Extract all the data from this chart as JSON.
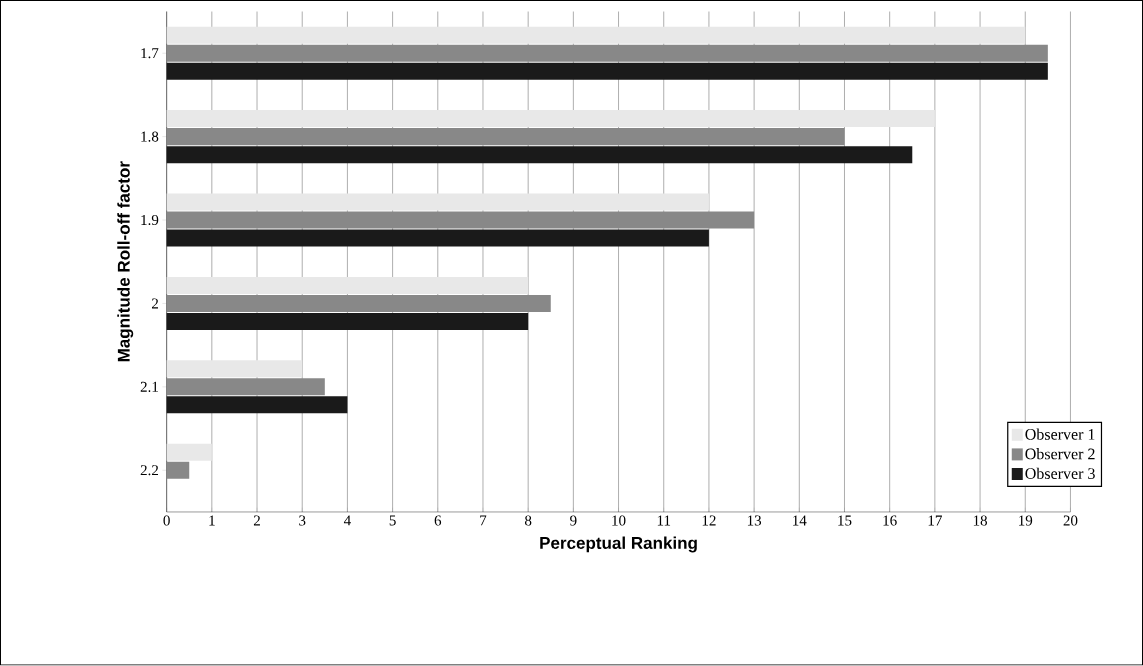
{
  "chart_data": {
    "type": "bar",
    "orientation": "horizontal",
    "xlabel": "Perceptual Ranking",
    "ylabel": "Magnitude Roll-off factor",
    "categories": [
      "1.7",
      "1.8",
      "1.9",
      "2",
      "2.1",
      "2.2"
    ],
    "series": [
      {
        "name": "Observer 1",
        "color": "#e8e8e8",
        "values": [
          19,
          17,
          12,
          8,
          3,
          1
        ]
      },
      {
        "name": "Observer 2",
        "color": "#888888",
        "values": [
          19.5,
          15,
          13,
          8.5,
          3.5,
          0.5
        ]
      },
      {
        "name": "Observer 3",
        "color": "#1a1a1a",
        "values": [
          19.5,
          16.5,
          12,
          8,
          4,
          null
        ]
      }
    ],
    "xlim": [
      0,
      20
    ],
    "xticks": [
      0,
      1,
      2,
      3,
      4,
      5,
      6,
      7,
      8,
      9,
      10,
      11,
      12,
      13,
      14,
      15,
      16,
      17,
      18,
      19,
      20
    ],
    "grid": "x",
    "legend": "bottom right"
  }
}
